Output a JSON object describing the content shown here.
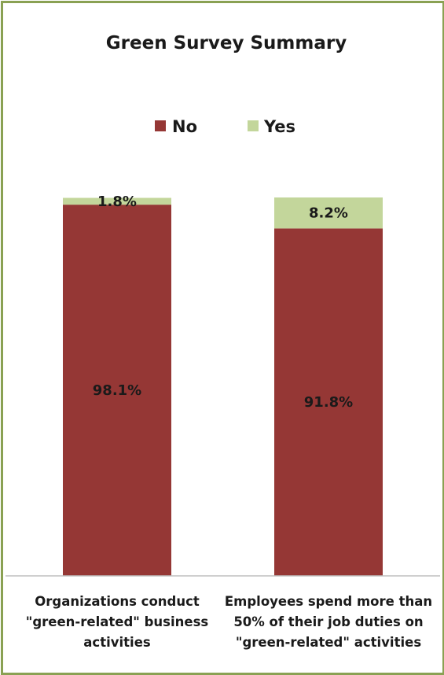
{
  "chart_data": {
    "type": "bar",
    "stacked": true,
    "title": "Green Survey Summary",
    "categories": [
      [
        "Organizations conduct",
        "\"green-related\" business",
        "activities"
      ],
      [
        "Employees spend more than",
        "50% of their job duties on",
        "\"green-related\" activities"
      ]
    ],
    "series": [
      {
        "name": "No",
        "color": "#953735",
        "values": [
          98.1,
          91.8
        ],
        "labels": [
          "98.1%",
          "91.8%"
        ]
      },
      {
        "name": "Yes",
        "color": "#c3d69b",
        "values": [
          1.8,
          8.2
        ],
        "labels": [
          "1.8%",
          "8.2%"
        ]
      }
    ],
    "ylim": [
      0,
      100
    ],
    "legend_position": "top",
    "grid": false,
    "border_color": "#8aa153"
  }
}
